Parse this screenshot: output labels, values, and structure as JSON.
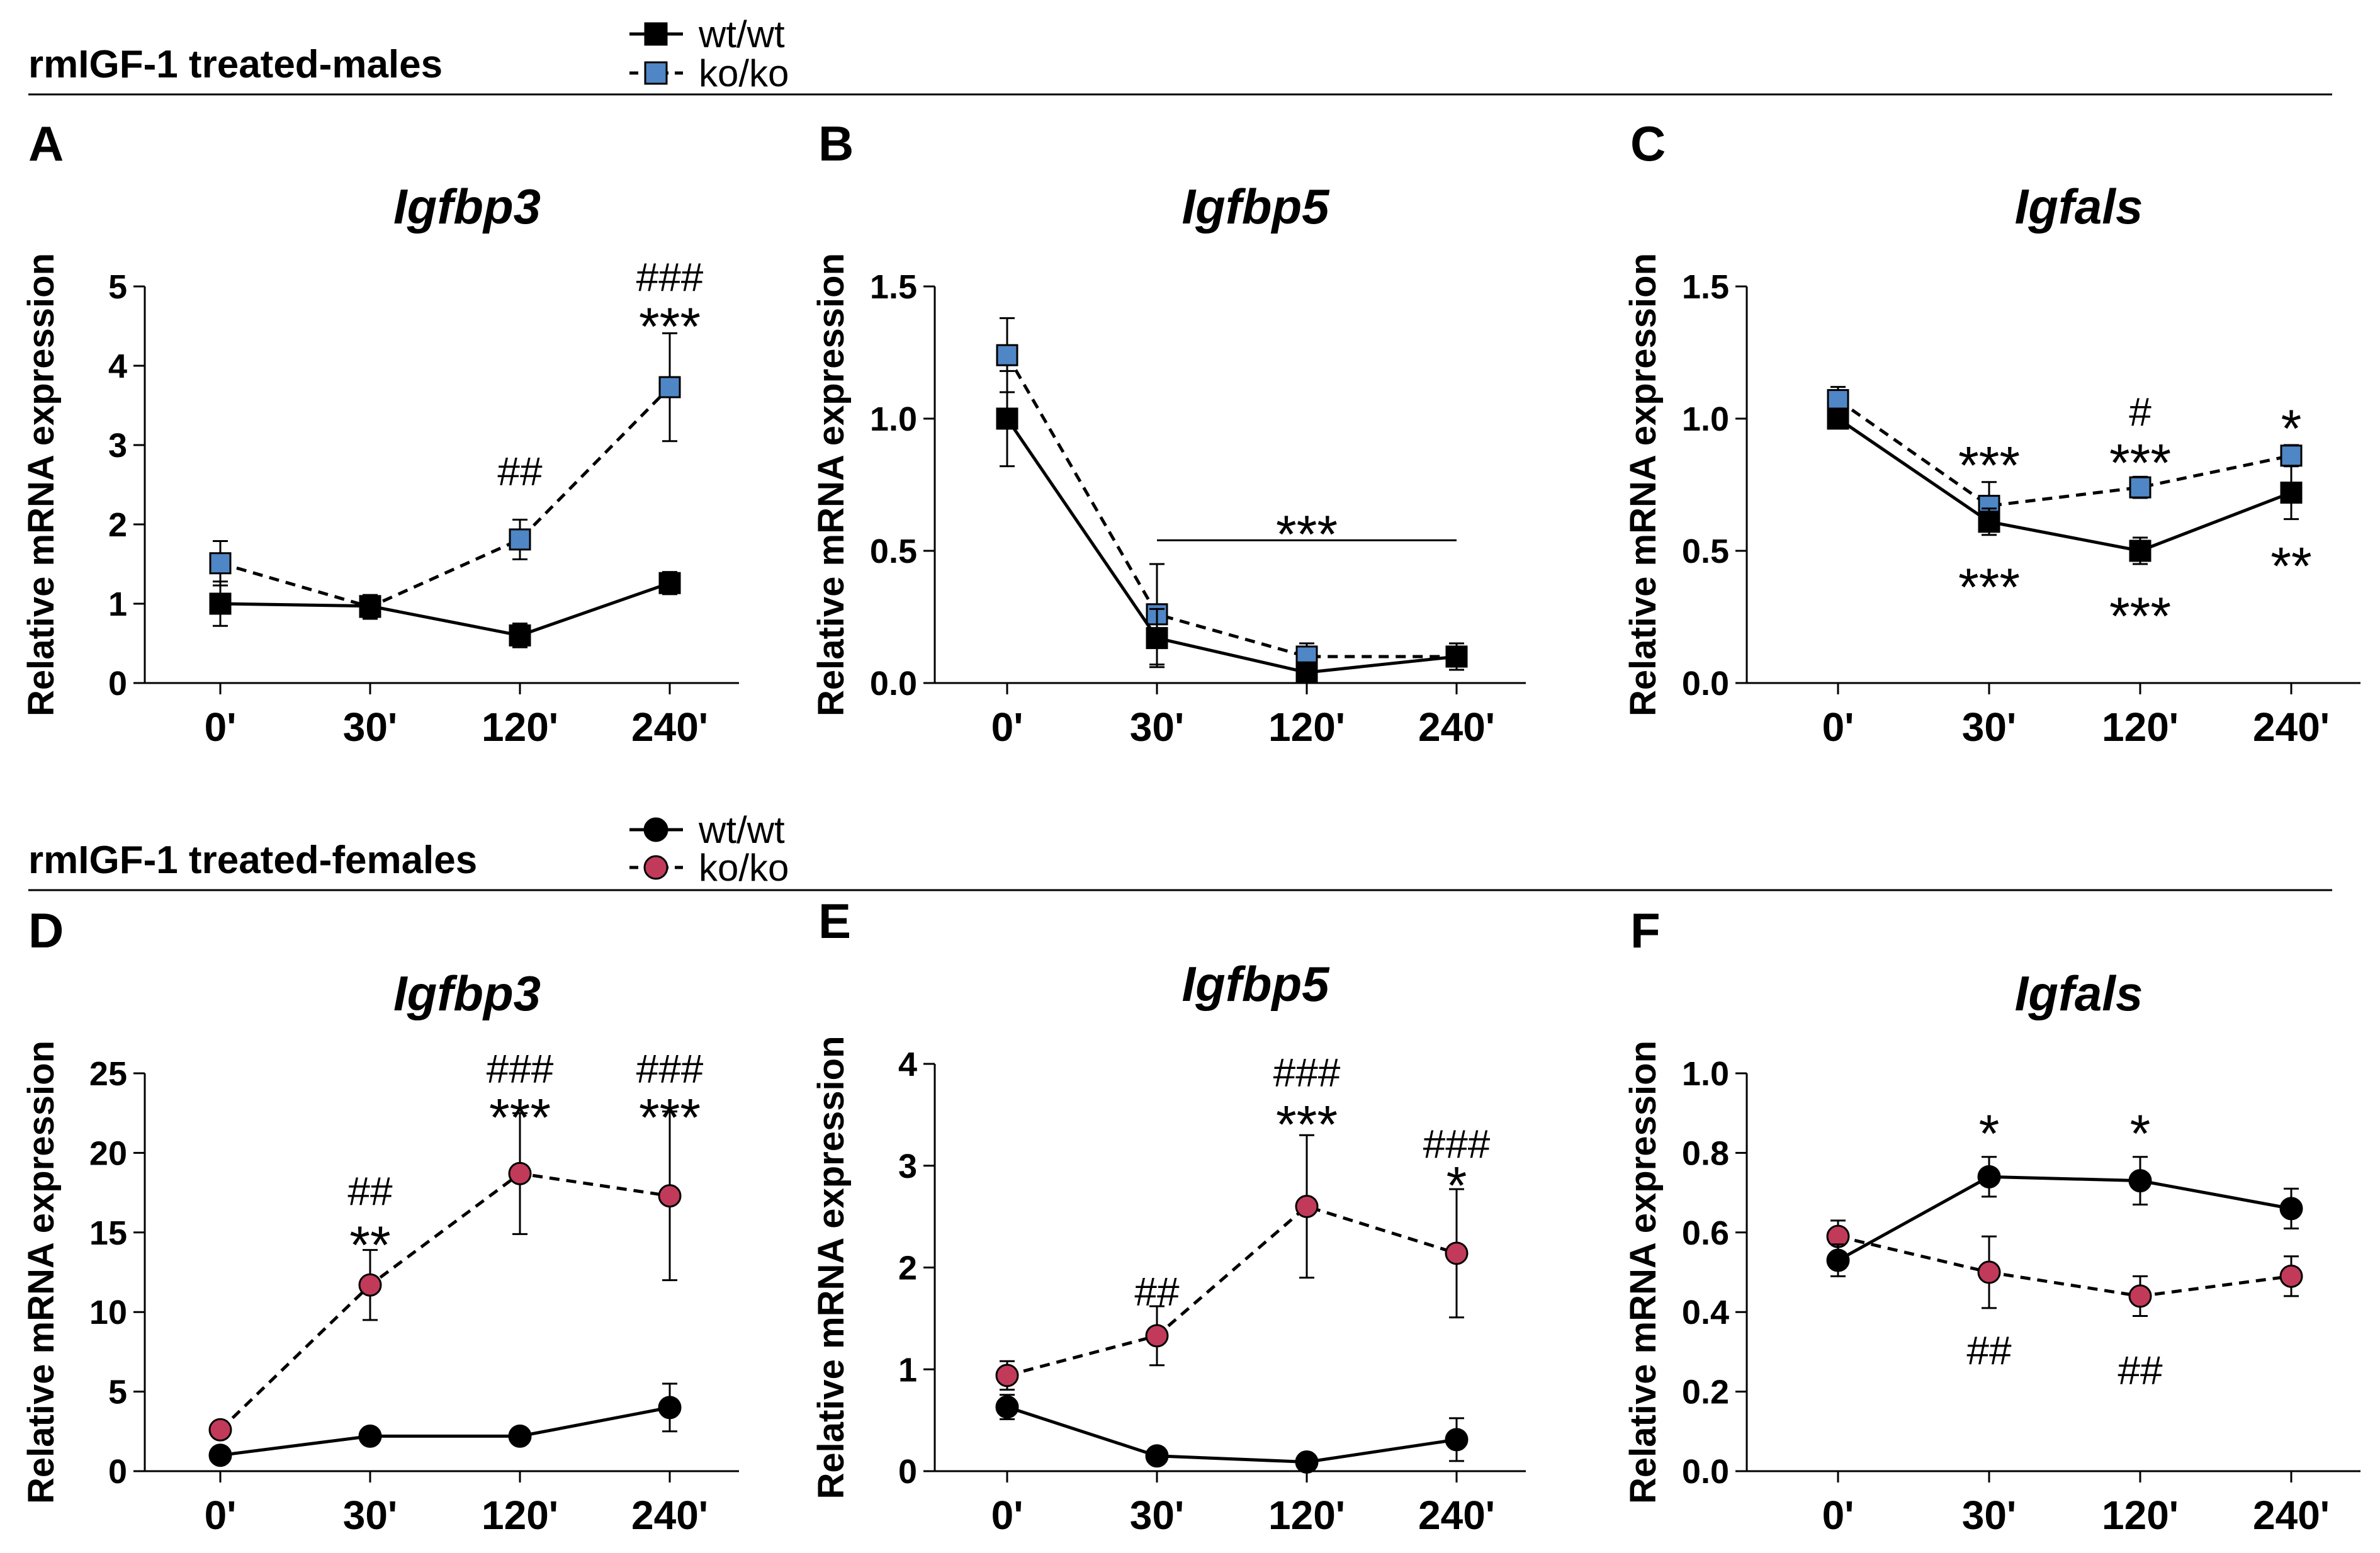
{
  "figure": {
    "group_titles": [
      "rmIGF-1 treated-males",
      "rmIGF-1 treated-females"
    ],
    "legends": [
      [
        {
          "label": "wt/wt",
          "marker": "square",
          "line": "solid",
          "fill": "#000000"
        },
        {
          "label": "ko/ko",
          "marker": "square",
          "line": "dashed",
          "fill": "#4f86c6"
        }
      ],
      [
        {
          "label": "wt/wt",
          "marker": "circle",
          "line": "solid",
          "fill": "#000000"
        },
        {
          "label": "ko/ko",
          "marker": "circle",
          "line": "dashed",
          "fill": "#c23a5a"
        }
      ]
    ]
  },
  "chart_data": [
    {
      "type": "line",
      "panel": "A",
      "title": "Igfbp3",
      "group": 0,
      "xlabel": "",
      "ylabel": "Relative mRNA expression",
      "categories": [
        "0'",
        "30'",
        "120'",
        "240'"
      ],
      "ylim": [
        0,
        5
      ],
      "yticks": [
        "0",
        "1",
        "2",
        "3",
        "4",
        "5"
      ],
      "ytick_values": [
        0,
        1,
        2,
        3,
        4,
        5
      ],
      "series": [
        {
          "name": "wt/wt",
          "values": [
            1.0,
            0.97,
            0.6,
            1.26
          ],
          "errors": [
            0.28,
            0.12,
            0.15,
            0.14
          ]
        },
        {
          "name": "ko/ko",
          "values": [
            1.51,
            0.96,
            1.81,
            3.73
          ],
          "errors": [
            0.28,
            0.15,
            0.25,
            0.68
          ]
        }
      ],
      "annotations": [
        {
          "text": "##",
          "x": 2,
          "y": 2.65
        },
        {
          "text": "###",
          "x": 3,
          "y": 5.1
        },
        {
          "text": "***",
          "x": 3,
          "y": 4.55
        }
      ]
    },
    {
      "type": "line",
      "panel": "B",
      "title": "Igfbp5",
      "group": 0,
      "xlabel": "",
      "ylabel": "Relative mRNA expression",
      "categories": [
        "0'",
        "30'",
        "120'",
        "240'"
      ],
      "ylim": [
        0,
        1.5
      ],
      "yticks": [
        "0.0",
        "0.5",
        "1.0",
        "1.5"
      ],
      "ytick_values": [
        0,
        0.5,
        1.0,
        1.5
      ],
      "series": [
        {
          "name": "wt/wt",
          "values": [
            1.0,
            0.17,
            0.04,
            0.1
          ],
          "errors": [
            0.18,
            0.11,
            0.03,
            0.03
          ]
        },
        {
          "name": "ko/ko",
          "values": [
            1.24,
            0.26,
            0.1,
            0.1
          ],
          "errors": [
            0.14,
            0.19,
            0.05,
            0.05
          ]
        }
      ],
      "annotations": [
        {
          "text": "***",
          "x": 2,
          "y": 0.58
        }
      ],
      "bracket": {
        "x_start": 1,
        "x_end": 3,
        "y": 0.54
      }
    },
    {
      "type": "line",
      "panel": "C",
      "title": "Igfals",
      "group": 0,
      "xlabel": "",
      "ylabel": "Relative mRNA expression",
      "categories": [
        "0'",
        "30'",
        "120'",
        "240'"
      ],
      "ylim": [
        0,
        1.5
      ],
      "yticks": [
        "0.0",
        "0.5",
        "1.0",
        "1.5"
      ],
      "ytick_values": [
        0,
        0.5,
        1.0,
        1.5
      ],
      "series": [
        {
          "name": "wt/wt",
          "values": [
            1.0,
            0.61,
            0.5,
            0.72
          ],
          "errors": [
            0.02,
            0.05,
            0.05,
            0.1
          ]
        },
        {
          "name": "ko/ko",
          "values": [
            1.07,
            0.67,
            0.74,
            0.86
          ],
          "errors": [
            0.05,
            0.09,
            0.04,
            0.04
          ]
        }
      ],
      "annotations": [
        {
          "text": "***",
          "x": 1,
          "y": 0.84
        },
        {
          "text": "***",
          "x": 1,
          "y": 0.38
        },
        {
          "text": "#",
          "x": 2,
          "y": 1.02
        },
        {
          "text": "***",
          "x": 2,
          "y": 0.85
        },
        {
          "text": "***",
          "x": 2,
          "y": 0.27
        },
        {
          "text": "*",
          "x": 3,
          "y": 0.98
        },
        {
          "text": "**",
          "x": 3,
          "y": 0.46
        }
      ]
    },
    {
      "type": "line",
      "panel": "D",
      "title": "Igfbp3",
      "group": 1,
      "xlabel": "",
      "ylabel": "Relative mRNA expression",
      "categories": [
        "0'",
        "30'",
        "120'",
        "240'"
      ],
      "ylim": [
        0,
        25
      ],
      "yticks": [
        "0",
        "5",
        "10",
        "15",
        "20",
        "25"
      ],
      "ytick_values": [
        0,
        5,
        10,
        15,
        20,
        25
      ],
      "series": [
        {
          "name": "wt/wt",
          "values": [
            1.0,
            2.2,
            2.2,
            4.0
          ],
          "errors": [
            0.2,
            0.3,
            0.3,
            1.5
          ]
        },
        {
          "name": "ko/ko",
          "values": [
            2.6,
            11.7,
            18.7,
            17.3
          ],
          "errors": [
            0.3,
            2.2,
            3.8,
            5.3
          ]
        }
      ],
      "annotations": [
        {
          "text": "##",
          "x": 1,
          "y": 17.5
        },
        {
          "text": "**",
          "x": 1,
          "y": 14.5
        },
        {
          "text": "###",
          "x": 2,
          "y": 25.2
        },
        {
          "text": "***",
          "x": 2,
          "y": 22.5
        },
        {
          "text": "###",
          "x": 3,
          "y": 25.2
        },
        {
          "text": "***",
          "x": 3,
          "y": 22.5
        }
      ]
    },
    {
      "type": "line",
      "panel": "E",
      "title": "Igfbp5",
      "group": 1,
      "xlabel": "",
      "ylabel": "Relative mRNA expression",
      "categories": [
        "0'",
        "30'",
        "120'",
        "240'"
      ],
      "ylim": [
        0,
        4
      ],
      "yticks": [
        "0",
        "1",
        "2",
        "3",
        "4"
      ],
      "ytick_values": [
        0,
        1,
        2,
        3,
        4
      ],
      "series": [
        {
          "name": "wt/wt",
          "values": [
            0.63,
            0.15,
            0.09,
            0.31
          ],
          "errors": [
            0.12,
            0.04,
            0.03,
            0.21
          ]
        },
        {
          "name": "ko/ko",
          "values": [
            0.94,
            1.33,
            2.6,
            2.14
          ],
          "errors": [
            0.14,
            0.29,
            0.7,
            0.63
          ]
        }
      ],
      "annotations": [
        {
          "text": "##",
          "x": 1,
          "y": 1.75
        },
        {
          "text": "###",
          "x": 2,
          "y": 3.9
        },
        {
          "text": "***",
          "x": 2,
          "y": 3.45
        },
        {
          "text": "###",
          "x": 3,
          "y": 3.2
        },
        {
          "text": "*",
          "x": 3,
          "y": 2.85
        }
      ]
    },
    {
      "type": "line",
      "panel": "F",
      "title": "Igfals",
      "group": 1,
      "xlabel": "",
      "ylabel": "Relative mRNA expression",
      "categories": [
        "0'",
        "30'",
        "120'",
        "240'"
      ],
      "ylim": [
        0,
        1.0
      ],
      "yticks": [
        "0.0",
        "0.2",
        "0.4",
        "0.6",
        "0.8",
        "1.0"
      ],
      "ytick_values": [
        0,
        0.2,
        0.4,
        0.6,
        0.8,
        1.0
      ],
      "series": [
        {
          "name": "wt/wt",
          "values": [
            0.53,
            0.74,
            0.73,
            0.66
          ],
          "errors": [
            0.04,
            0.05,
            0.06,
            0.05
          ]
        },
        {
          "name": "ko/ko",
          "values": [
            0.59,
            0.5,
            0.44,
            0.49
          ],
          "errors": [
            0.04,
            0.09,
            0.05,
            0.05
          ]
        }
      ],
      "annotations": [
        {
          "text": "*",
          "x": 1,
          "y": 0.86
        },
        {
          "text": "##",
          "x": 1,
          "y": 0.3
        },
        {
          "text": "*",
          "x": 2,
          "y": 0.86
        },
        {
          "text": "##",
          "x": 2,
          "y": 0.25
        }
      ]
    }
  ]
}
